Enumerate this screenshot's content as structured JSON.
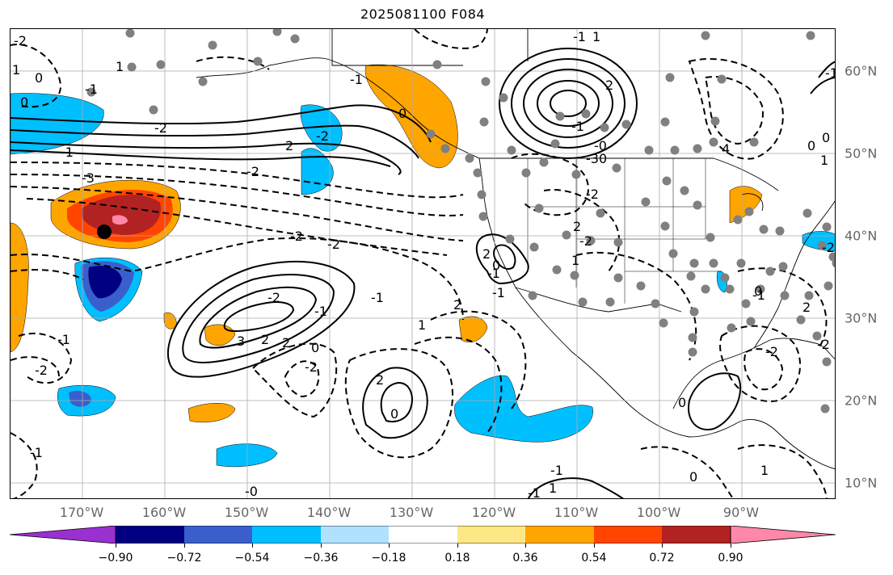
{
  "title": "2025081100 F084",
  "map": {
    "lat_labels": [
      "60°N",
      "50°N",
      "40°N",
      "30°N",
      "20°N",
      "10°N"
    ],
    "lon_labels": [
      "170°W",
      "160°W",
      "150°W",
      "140°W",
      "130°W",
      "120°W",
      "110°W",
      "100°W",
      "90°W"
    ],
    "contour_labels": [
      "-2",
      "1",
      "0",
      "-1",
      "0",
      "1",
      "-2",
      "-1",
      "2",
      "-3",
      "-2",
      "-1",
      "0",
      "-2",
      "-1",
      "1",
      "2",
      "-1",
      "-0",
      "-3",
      "4",
      "-2",
      "2",
      "-2",
      "1",
      "0",
      "-2",
      "-2",
      "2",
      "-1",
      "-2",
      "-1",
      "-1",
      "2",
      "1",
      "3",
      "2",
      "2",
      "0",
      "-2",
      "-1",
      "-2",
      "2",
      "0",
      "-1",
      "-1",
      "1",
      "0",
      "0",
      "1",
      "-2",
      "2",
      "-1",
      "-2",
      "-2",
      "0",
      "-0",
      "-1",
      "0",
      "-1",
      "-1",
      "1",
      "0",
      "0"
    ]
  },
  "colorbar": {
    "ticks": [
      "−0.90",
      "−0.72",
      "−0.54",
      "−0.36",
      "−0.18",
      "0.18",
      "0.36",
      "0.54",
      "0.72",
      "0.90"
    ],
    "colors": [
      "#9b30d0",
      "#000080",
      "#3a5fcd",
      "#00bfff",
      "#b0e2ff",
      "#ffffff",
      "#fee886",
      "#ffa500",
      "#ff4500",
      "#b22222",
      "#ff88aa"
    ]
  }
}
